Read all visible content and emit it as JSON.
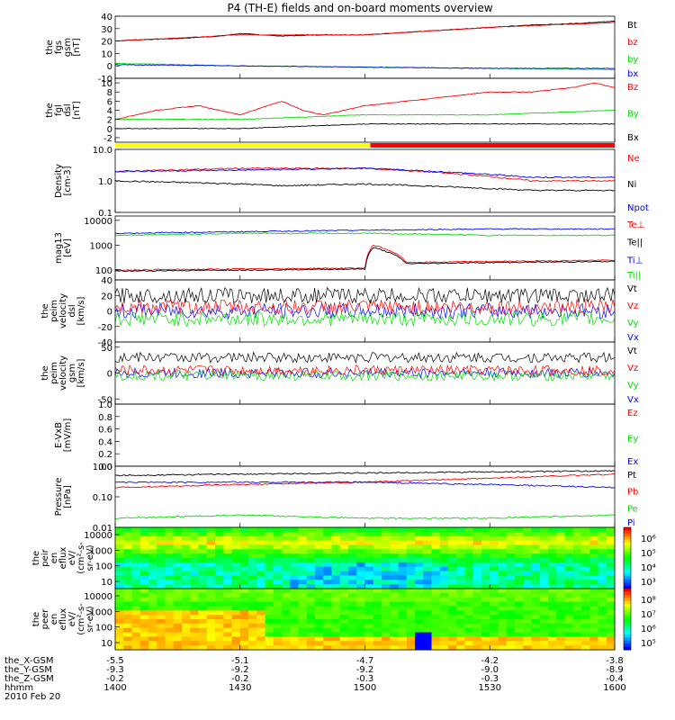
{
  "title": "P4 (TH-E) fields and on-board moments overview",
  "colors": {
    "black": "#000000",
    "red": "#ff0000",
    "green": "#00dd00",
    "blue": "#0000ff",
    "yellow": "#ffff00"
  },
  "chart_data": [
    {
      "id": "fgs",
      "type": "line",
      "ylabel": [
        "the",
        "fgs",
        "gsm",
        "[nT]"
      ],
      "yticks": [
        "40",
        "30",
        "20",
        "10",
        "0",
        "-10"
      ],
      "ylim": [
        -10,
        40
      ],
      "legend": [
        {
          "name": "Bt",
          "color": "#000000"
        },
        {
          "name": "bz",
          "color": "#ff0000"
        },
        {
          "name": "by",
          "color": "#00dd00"
        },
        {
          "name": "bx",
          "color": "#0000ff"
        }
      ],
      "series": [
        {
          "name": "Bt",
          "color": "#000000",
          "x": [
            1400,
            1405,
            1415,
            1425,
            1430,
            1440,
            1450,
            1500,
            1510,
            1520,
            1530,
            1540,
            1550,
            1600
          ],
          "values": [
            20,
            21,
            22,
            24,
            26,
            24,
            25,
            25,
            27,
            29,
            31,
            33,
            34,
            36
          ]
        },
        {
          "name": "bz",
          "color": "#ff0000",
          "x": [
            1400,
            1430,
            1500,
            1530,
            1600
          ],
          "values": [
            20,
            25,
            25,
            31,
            35
          ]
        },
        {
          "name": "by",
          "color": "#00dd00",
          "x": [
            1400,
            1430,
            1500,
            1530,
            1600
          ],
          "values": [
            2,
            0,
            -1,
            -2,
            -3
          ]
        },
        {
          "name": "bx",
          "color": "#0000ff",
          "x": [
            1400,
            1430,
            1500,
            1530,
            1600
          ],
          "values": [
            1,
            0,
            -1,
            -2,
            -2
          ]
        }
      ]
    },
    {
      "id": "fgl",
      "type": "line",
      "ylabel": [
        "the",
        "fgl",
        "dsl",
        "[nT]"
      ],
      "yticks": [
        "10",
        "8",
        "6",
        "4",
        "2",
        "0",
        "-2"
      ],
      "ylim": [
        -3,
        11
      ],
      "legend": [
        {
          "name": "Bz",
          "color": "#ff0000"
        },
        {
          "name": "By",
          "color": "#00dd00"
        },
        {
          "name": "Bx",
          "color": "#000000"
        }
      ],
      "series": [
        {
          "name": "Bz",
          "color": "#ff0000",
          "x": [
            1400,
            1410,
            1420,
            1430,
            1440,
            1445,
            1450,
            1500,
            1510,
            1520,
            1530,
            1540,
            1550,
            1555,
            1600
          ],
          "values": [
            2,
            4,
            5,
            3,
            6,
            4,
            3,
            5,
            6,
            7,
            8,
            8,
            9,
            10,
            9
          ]
        },
        {
          "name": "By",
          "color": "#00dd00",
          "x": [
            1400,
            1430,
            1500,
            1530,
            1600
          ],
          "values": [
            2,
            2,
            3,
            3,
            4
          ]
        },
        {
          "name": "Bx",
          "color": "#000000",
          "x": [
            1400,
            1430,
            1500,
            1530,
            1600
          ],
          "values": [
            0,
            0,
            1,
            1,
            1
          ]
        }
      ]
    },
    {
      "id": "density",
      "type": "line",
      "log": true,
      "ylabel": [
        "Density",
        "[cm-3]"
      ],
      "yticks": [
        "10.0",
        "1.0",
        "0.1"
      ],
      "ylim": [
        0.1,
        10
      ],
      "legend": [
        {
          "name": "Ne",
          "color": "#ff0000"
        },
        {
          "name": "Ni",
          "color": "#000000"
        },
        {
          "name": "Npot",
          "color": "#0000ff"
        }
      ],
      "series": [
        {
          "name": "Ne",
          "color": "#ff0000",
          "x": [
            1400,
            1430,
            1500,
            1540,
            1600
          ],
          "values": [
            2,
            2.5,
            2.5,
            1,
            1
          ]
        },
        {
          "name": "Ni",
          "color": "#000000",
          "x": [
            1400,
            1430,
            1440,
            1500,
            1540,
            1600
          ],
          "values": [
            1,
            0.8,
            0.7,
            0.8,
            0.5,
            0.5
          ]
        },
        {
          "name": "Npot",
          "color": "#0000ff",
          "x": [
            1400,
            1430,
            1500,
            1540,
            1600
          ],
          "values": [
            2,
            2.2,
            2.5,
            1.3,
            1.3
          ]
        }
      ]
    },
    {
      "id": "temp",
      "type": "line",
      "log": true,
      "ylabel": [
        "mag13",
        "[eV]"
      ],
      "yticks": [
        "10000",
        "1000",
        "100"
      ],
      "ylim": [
        40,
        15000
      ],
      "legend": [
        {
          "name": "Te⊥",
          "color": "#ff0000"
        },
        {
          "name": "Te||",
          "color": "#000000"
        },
        {
          "name": "Ti⊥",
          "color": "#0000ff"
        },
        {
          "name": "Ti||",
          "color": "#00dd00"
        }
      ],
      "series": [
        {
          "name": "Ti⊥",
          "color": "#0000ff",
          "x": [
            1400,
            1430,
            1500,
            1530,
            1600
          ],
          "values": [
            3000,
            3500,
            4000,
            4500,
            4500
          ]
        },
        {
          "name": "Ti||",
          "color": "#00dd00",
          "x": [
            1400,
            1430,
            1500,
            1530,
            1600
          ],
          "values": [
            2500,
            3000,
            3000,
            2500,
            2500
          ]
        },
        {
          "name": "Te⊥",
          "color": "#ff0000",
          "x": [
            1400,
            1430,
            1500,
            1502,
            1510,
            1530,
            1600
          ],
          "values": [
            100,
            110,
            120,
            1000,
            200,
            220,
            250
          ]
        },
        {
          "name": "Te||",
          "color": "#000000",
          "x": [
            1400,
            1430,
            1500,
            1502,
            1510,
            1530,
            1600
          ],
          "values": [
            90,
            100,
            110,
            800,
            180,
            200,
            220
          ]
        }
      ]
    },
    {
      "id": "velocity-dsl",
      "type": "line",
      "noisy": true,
      "ylabel": [
        "the",
        "peim",
        "velocity",
        "dsl",
        "[km/s]"
      ],
      "yticks": [
        "40",
        "20",
        "0",
        "-20",
        "-40"
      ],
      "ylim": [
        -40,
        40
      ],
      "legend": [
        {
          "name": "Vt",
          "color": "#000000"
        },
        {
          "name": "Vz",
          "color": "#ff0000"
        },
        {
          "name": "Vy",
          "color": "#00dd00"
        },
        {
          "name": "Vx",
          "color": "#0000ff"
        }
      ],
      "series": [
        {
          "name": "Vx",
          "color": "#0000ff",
          "x": [
            1400,
            1600
          ],
          "values": [
            0,
            0
          ]
        },
        {
          "name": "Vy",
          "color": "#00dd00",
          "x": [
            1400,
            1600
          ],
          "values": [
            -10,
            -10
          ]
        },
        {
          "name": "Vz",
          "color": "#ff0000",
          "x": [
            1400,
            1600
          ],
          "values": [
            5,
            5
          ]
        },
        {
          "name": "Vt",
          "color": "#000000",
          "x": [
            1400,
            1600
          ],
          "values": [
            20,
            20
          ]
        }
      ]
    },
    {
      "id": "velocity-gsm",
      "type": "line",
      "noisy": true,
      "ylabel": [
        "the",
        "peim",
        "velocity",
        "gsm",
        "[km/s]"
      ],
      "yticks": [
        "50",
        "0",
        "-50"
      ],
      "ylim": [
        -60,
        60
      ],
      "legend": [
        {
          "name": "Vt",
          "color": "#000000"
        },
        {
          "name": "Vz",
          "color": "#ff0000"
        },
        {
          "name": "Vy",
          "color": "#00dd00"
        },
        {
          "name": "Vx",
          "color": "#0000ff"
        }
      ],
      "series": [
        {
          "name": "Vx",
          "color": "#0000ff",
          "x": [
            1400,
            1600
          ],
          "values": [
            0,
            0
          ]
        },
        {
          "name": "Vy",
          "color": "#00dd00",
          "x": [
            1400,
            1600
          ],
          "values": [
            -5,
            -5
          ]
        },
        {
          "name": "Vz",
          "color": "#ff0000",
          "x": [
            1400,
            1600
          ],
          "values": [
            5,
            5
          ]
        },
        {
          "name": "Vt",
          "color": "#000000",
          "x": [
            1400,
            1600
          ],
          "values": [
            30,
            30
          ]
        }
      ]
    },
    {
      "id": "efield",
      "type": "line",
      "ylabel": [
        "E-VxB",
        "[mV/m]"
      ],
      "yticks": [
        "1.0",
        "0.8",
        "0.6",
        "0.4",
        "0.2",
        "0.0"
      ],
      "ylim": [
        0,
        1
      ],
      "legend": [
        {
          "name": "Ez",
          "color": "#ff0000"
        },
        {
          "name": "Ey",
          "color": "#00dd00"
        },
        {
          "name": "Ex",
          "color": "#0000ff"
        }
      ],
      "series": []
    },
    {
      "id": "pressure",
      "type": "line",
      "log": true,
      "ylabel": [
        "Pressure",
        "[nPa]"
      ],
      "yticks": [
        "1.00",
        "0.10",
        "0.01"
      ],
      "ylim": [
        0.01,
        1
      ],
      "legend": [
        {
          "name": "Pt",
          "color": "#000000"
        },
        {
          "name": "Pb",
          "color": "#ff0000"
        },
        {
          "name": "Pe",
          "color": "#00dd00"
        },
        {
          "name": "Pi",
          "color": "#0000ff"
        }
      ],
      "series": [
        {
          "name": "Pt",
          "color": "#000000",
          "x": [
            1400,
            1430,
            1500,
            1530,
            1600
          ],
          "values": [
            0.5,
            0.55,
            0.6,
            0.65,
            0.7
          ]
        },
        {
          "name": "Pb",
          "color": "#ff0000",
          "x": [
            1400,
            1430,
            1500,
            1530,
            1600
          ],
          "values": [
            0.2,
            0.25,
            0.3,
            0.4,
            0.55
          ]
        },
        {
          "name": "Pi",
          "color": "#0000ff",
          "x": [
            1400,
            1430,
            1500,
            1530,
            1600
          ],
          "values": [
            0.3,
            0.3,
            0.3,
            0.25,
            0.2
          ]
        },
        {
          "name": "Pe",
          "color": "#00dd00",
          "x": [
            1400,
            1430,
            1500,
            1530,
            1600
          ],
          "values": [
            0.02,
            0.025,
            0.02,
            0.02,
            0.025
          ]
        }
      ]
    },
    {
      "id": "peir-spectrogram",
      "type": "heatmap",
      "ylabel": [
        "the",
        "peir",
        "en",
        "eflux",
        "eV/",
        "(cm²-s-",
        "sr-eV)"
      ],
      "yticks": [
        "10000",
        "1000",
        "100",
        "10"
      ],
      "colorbar_ticks": [
        "10⁶",
        "10⁵",
        "10⁴",
        "10³"
      ]
    },
    {
      "id": "peer-spectrogram",
      "type": "heatmap",
      "ylabel": [
        "the",
        "peer",
        "en",
        "eflux",
        "eV/",
        "(cm²-s-",
        "sr-eV)"
      ],
      "yticks": [
        "10000",
        "1000",
        "100",
        "10"
      ],
      "colorbar_ticks": [
        "10⁸",
        "10⁷",
        "10⁶",
        "10⁵"
      ]
    }
  ],
  "xaxis": {
    "rows": [
      {
        "label": "the_X-GSM",
        "values": [
          "-5.5",
          "-5.1",
          "-4.7",
          "-4.2",
          "-3.8"
        ]
      },
      {
        "label": "the_Y-GSM",
        "values": [
          "-9.3",
          "-9.2",
          "-9.2",
          "-9.0",
          "-8.9"
        ]
      },
      {
        "label": "the_Z-GSM",
        "values": [
          "-0.2",
          "-0.2",
          "-0.3",
          "-0.3",
          "-0.4"
        ]
      },
      {
        "label": "hhmm",
        "values": [
          "1400",
          "1430",
          "1500",
          "1530",
          "1600"
        ]
      }
    ],
    "date": "2010 Feb 20"
  }
}
